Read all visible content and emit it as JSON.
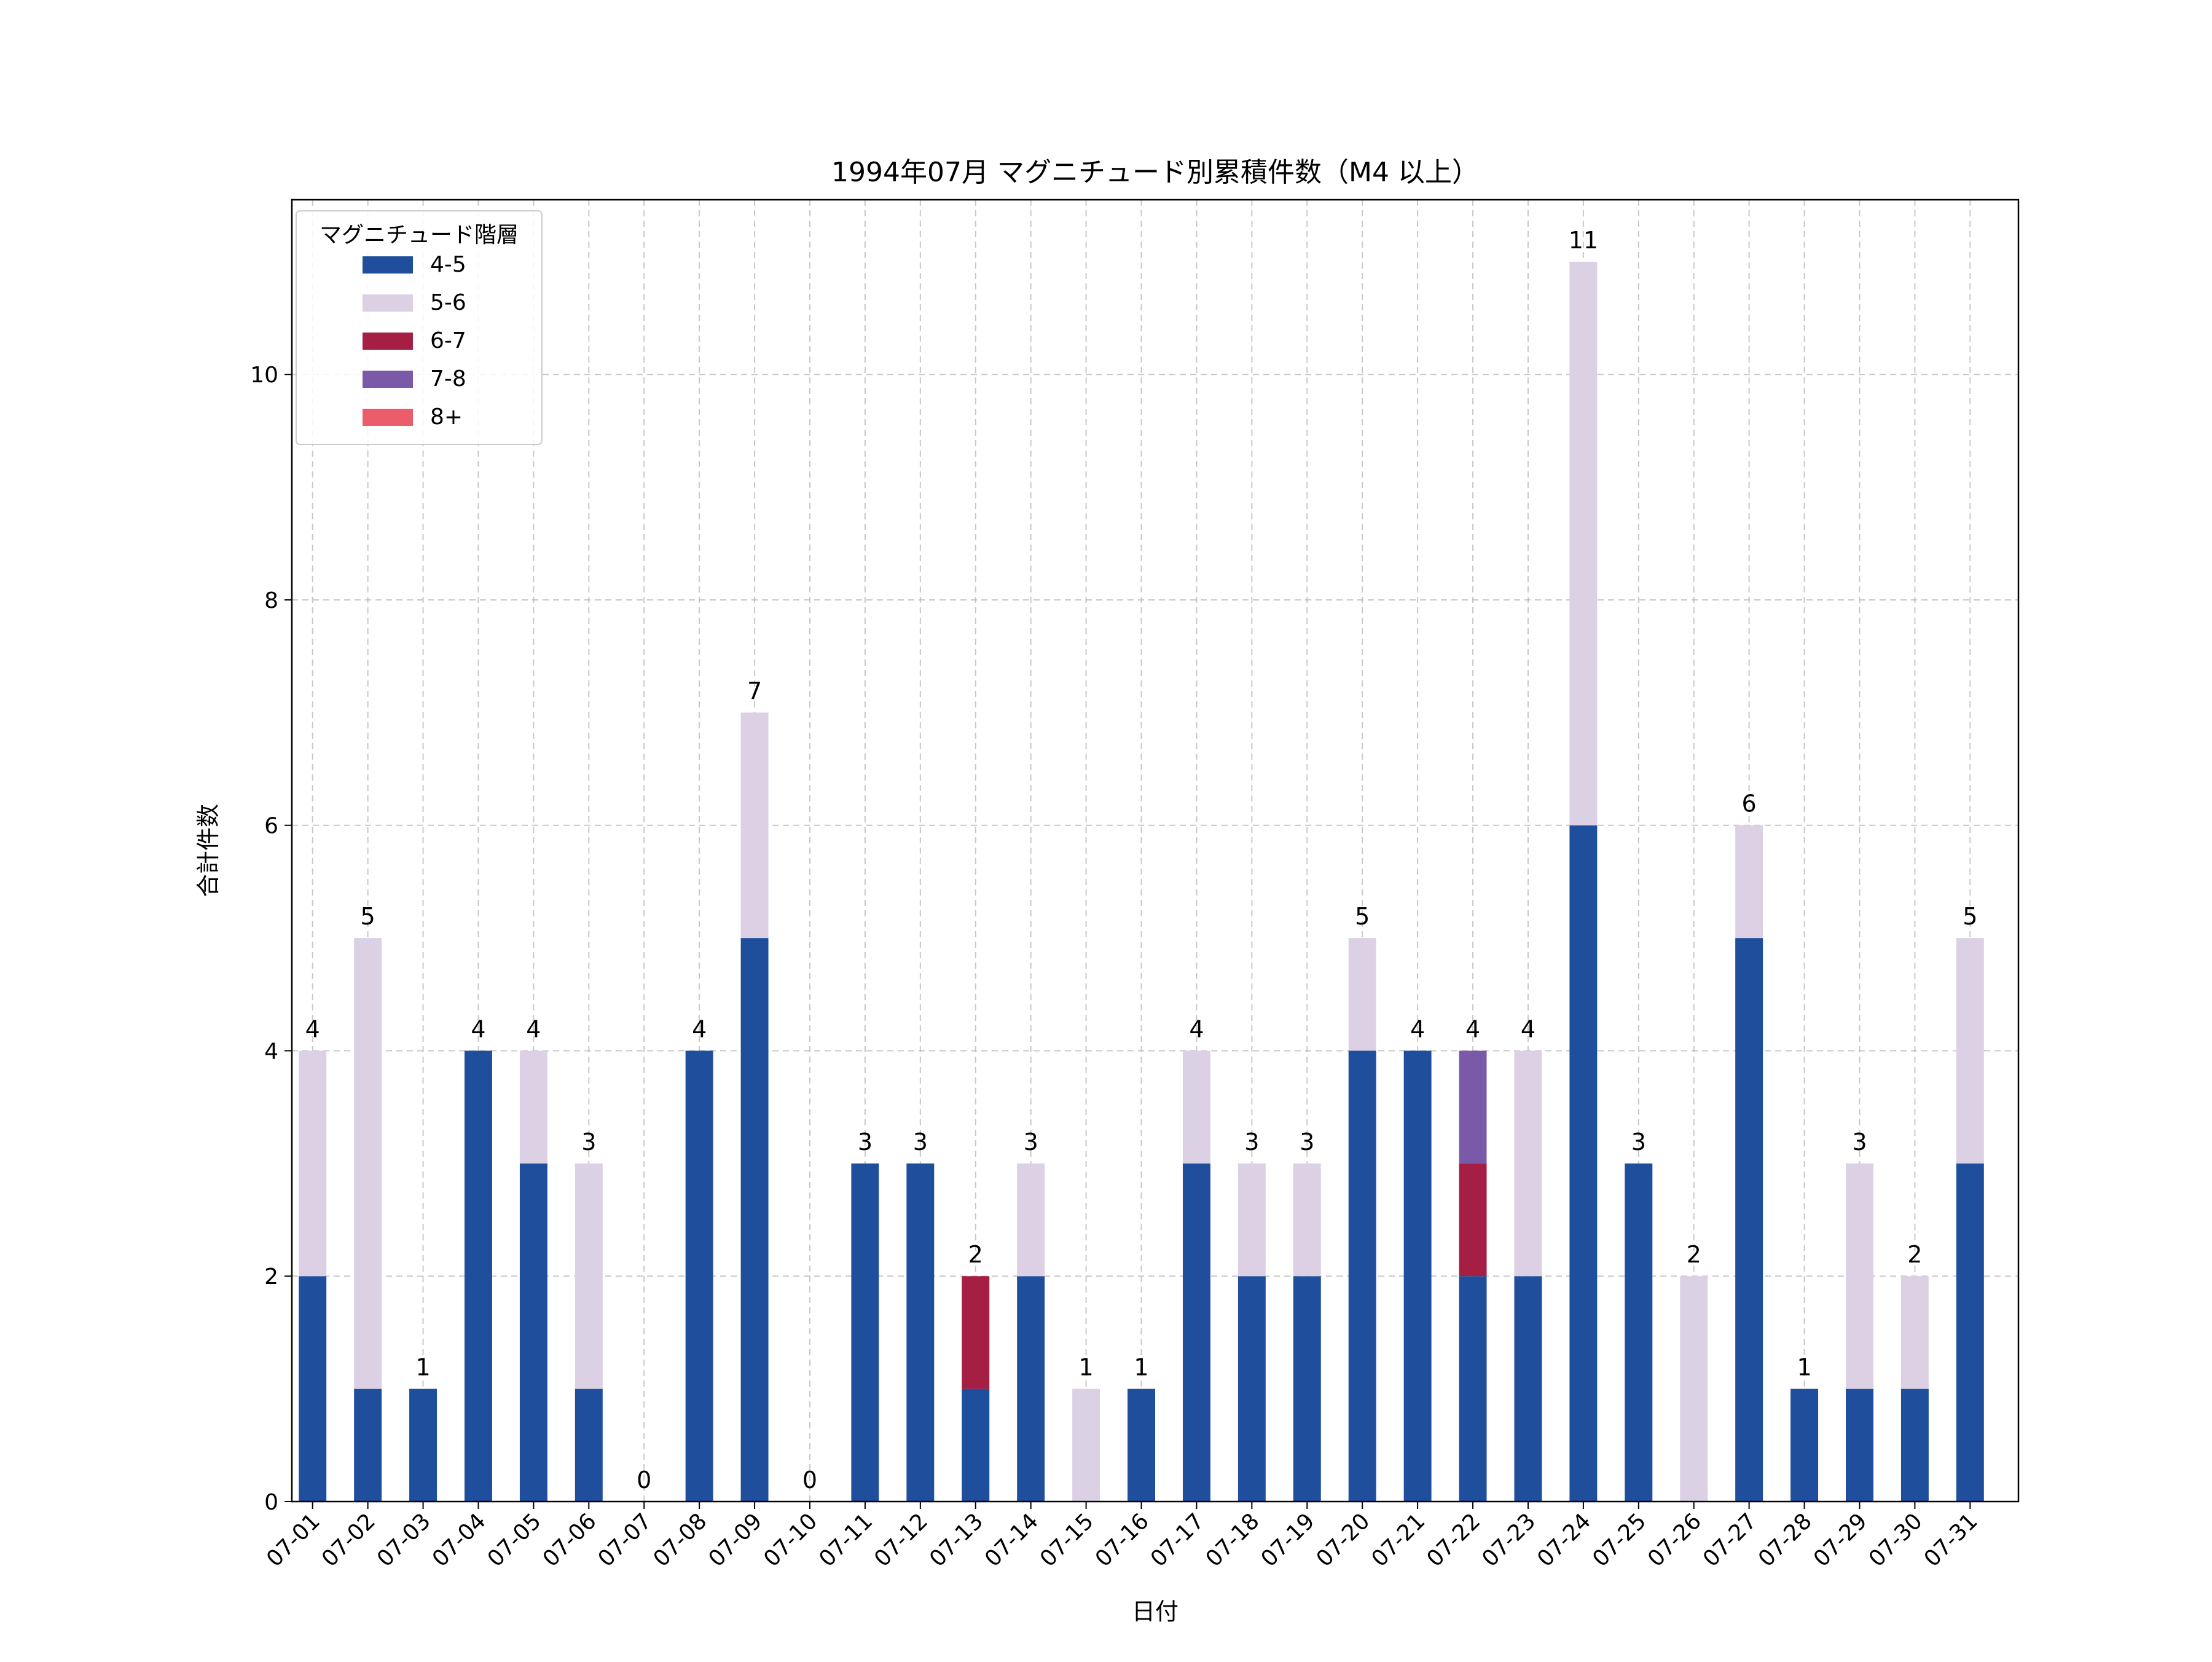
{
  "chart_data": {
    "type": "bar",
    "stacked": true,
    "title": "1994年07月 マグニチュード別累積件数（M4 以上）",
    "xlabel": "日付",
    "ylabel": "合計件数",
    "ylim": [
      0,
      11.55
    ],
    "yticks": [
      0,
      2,
      4,
      6,
      8,
      10
    ],
    "grid": true,
    "legend": {
      "title": "マグニチュード階層",
      "position": "top-left"
    },
    "categories": [
      "07-01",
      "07-02",
      "07-03",
      "07-04",
      "07-05",
      "07-06",
      "07-07",
      "07-08",
      "07-09",
      "07-10",
      "07-11",
      "07-12",
      "07-13",
      "07-14",
      "07-15",
      "07-16",
      "07-17",
      "07-18",
      "07-19",
      "07-20",
      "07-21",
      "07-22",
      "07-23",
      "07-24",
      "07-25",
      "07-26",
      "07-27",
      "07-28",
      "07-29",
      "07-30",
      "07-31"
    ],
    "series": [
      {
        "name": "4-5",
        "color": "#1f4e9c",
        "values": [
          2,
          1,
          1,
          4,
          3,
          1,
          0,
          4,
          5,
          0,
          3,
          3,
          1,
          2,
          0,
          1,
          3,
          2,
          2,
          4,
          4,
          2,
          2,
          6,
          3,
          0,
          5,
          1,
          1,
          1,
          3
        ]
      },
      {
        "name": "5-6",
        "color": "#dcd0e5",
        "values": [
          2,
          4,
          0,
          0,
          1,
          2,
          0,
          0,
          2,
          0,
          0,
          0,
          0,
          1,
          1,
          0,
          1,
          1,
          1,
          1,
          0,
          0,
          2,
          5,
          0,
          2,
          1,
          0,
          2,
          1,
          2
        ]
      },
      {
        "name": "6-7",
        "color": "#a51f45",
        "values": [
          0,
          0,
          0,
          0,
          0,
          0,
          0,
          0,
          0,
          0,
          0,
          0,
          1,
          0,
          0,
          0,
          0,
          0,
          0,
          0,
          0,
          1,
          0,
          0,
          0,
          0,
          0,
          0,
          0,
          0,
          0
        ]
      },
      {
        "name": "7-8",
        "color": "#7a5aa8",
        "values": [
          0,
          0,
          0,
          0,
          0,
          0,
          0,
          0,
          0,
          0,
          0,
          0,
          0,
          0,
          0,
          0,
          0,
          0,
          0,
          0,
          0,
          1,
          0,
          0,
          0,
          0,
          0,
          0,
          0,
          0,
          0
        ]
      },
      {
        "name": "8+",
        "color": "#ec5d6b",
        "values": [
          0,
          0,
          0,
          0,
          0,
          0,
          0,
          0,
          0,
          0,
          0,
          0,
          0,
          0,
          0,
          0,
          0,
          0,
          0,
          0,
          0,
          0,
          0,
          0,
          0,
          0,
          0,
          0,
          0,
          0,
          0
        ]
      }
    ],
    "totals": [
      4,
      5,
      1,
      4,
      4,
      3,
      0,
      4,
      7,
      0,
      3,
      3,
      2,
      3,
      1,
      1,
      4,
      3,
      3,
      5,
      4,
      4,
      4,
      11,
      3,
      2,
      6,
      1,
      3,
      2,
      5
    ]
  }
}
